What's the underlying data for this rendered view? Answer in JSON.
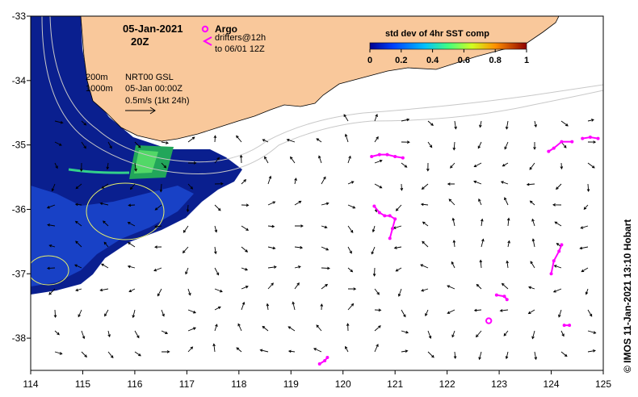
{
  "map": {
    "date": "05-Jan-2021",
    "hour": "20Z",
    "argo_label": "Argo",
    "drifters_line1": "drifters@12h",
    "drifters_line2": "to 06/01 12Z",
    "depth1": "200m",
    "depth2": "1000m",
    "product_line1": "NRT00 GSL",
    "product_line2": "05-Jan 00:00Z",
    "scale_label": "0.5m/s (1kt 24h)",
    "credit": "© IMOS 11-Jan-2021 13:10 Hobart",
    "lon_ticks": [
      "114",
      "115",
      "116",
      "117",
      "118",
      "119",
      "120",
      "121",
      "122",
      "123",
      "124",
      "125"
    ],
    "lat_ticks": [
      "-33",
      "-34",
      "-35",
      "-36",
      "-37",
      "-38"
    ],
    "lon_range": [
      114,
      125
    ],
    "lat_range": [
      -38.5,
      -33
    ],
    "colors": {
      "land": "#f9c89b",
      "ocean": "#ffffff",
      "drifter": "#ff00ff",
      "isobath": "#b8b8b8",
      "sst_low": "#00107a",
      "sst_mid": "#1a4fd8"
    }
  },
  "colorbar": {
    "title": "std dev of 4hr SST comp",
    "ticks": [
      "0",
      "0.2",
      "0.4",
      "0.6",
      "0.8",
      "1"
    ],
    "range": [
      0,
      1
    ]
  },
  "argo_floats": [
    {
      "lon": 122.8,
      "lat": -37.73
    }
  ],
  "drifter_tracks": [
    {
      "points": [
        [
          120.55,
          -35.18
        ],
        [
          120.7,
          -35.15
        ],
        [
          120.85,
          -35.15
        ],
        [
          121.0,
          -35.18
        ],
        [
          121.15,
          -35.2
        ]
      ]
    },
    {
      "points": [
        [
          120.6,
          -35.95
        ],
        [
          120.7,
          -36.05
        ],
        [
          120.8,
          -36.1
        ],
        [
          120.9,
          -36.1
        ],
        [
          121.0,
          -36.15
        ],
        [
          120.95,
          -36.3
        ],
        [
          120.9,
          -36.45
        ]
      ]
    },
    {
      "points": [
        [
          124.0,
          -37.0
        ],
        [
          124.05,
          -36.8
        ],
        [
          124.15,
          -36.65
        ],
        [
          124.2,
          -36.55
        ]
      ]
    },
    {
      "points": [
        [
          122.95,
          -37.33
        ],
        [
          123.1,
          -37.35
        ],
        [
          123.15,
          -37.4
        ]
      ]
    },
    {
      "points": [
        [
          124.25,
          -37.8
        ],
        [
          124.35,
          -37.8
        ]
      ]
    },
    {
      "points": [
        [
          119.55,
          -38.4
        ],
        [
          119.65,
          -38.35
        ],
        [
          119.7,
          -38.3
        ]
      ]
    },
    {
      "points": [
        [
          124.4,
          -34.95
        ],
        [
          124.2,
          -34.95
        ],
        [
          124.05,
          -35.05
        ],
        [
          123.95,
          -35.1
        ]
      ]
    },
    {
      "points": [
        [
          124.9,
          -34.9
        ],
        [
          124.75,
          -34.88
        ],
        [
          124.6,
          -34.9
        ]
      ]
    }
  ]
}
